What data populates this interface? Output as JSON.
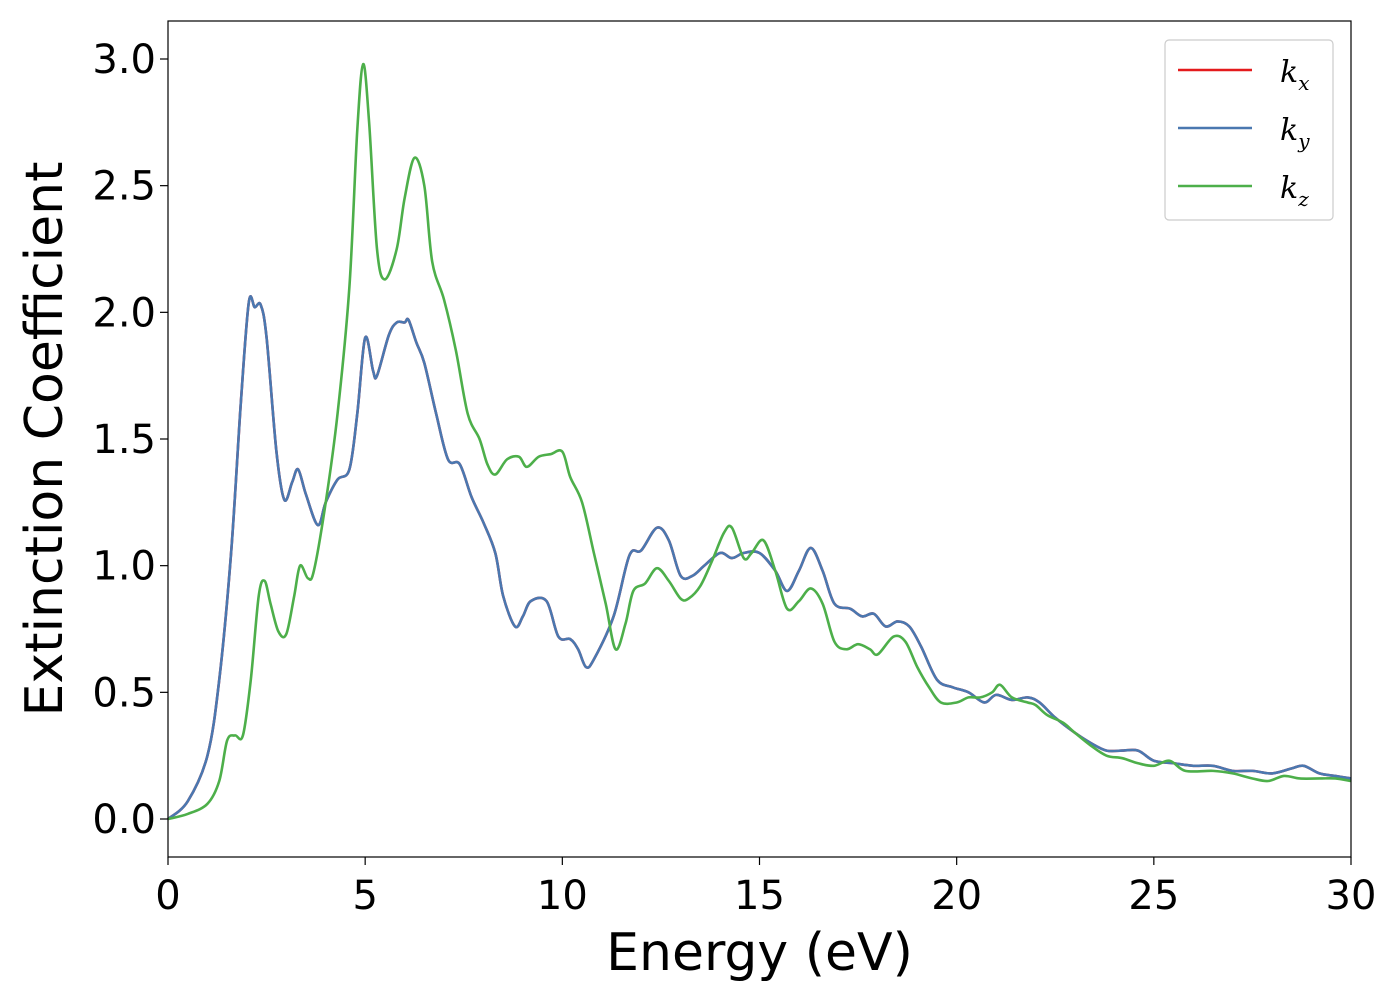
{
  "chart_data": {
    "type": "line",
    "xlabel": "Energy (eV)",
    "ylabel": "Extinction Coefficient",
    "xlim": [
      0,
      30
    ],
    "ylim": [
      -0.15,
      3.15
    ],
    "xticks": [
      0,
      5,
      10,
      15,
      20,
      25,
      30
    ],
    "xtick_labels": [
      "0",
      "5",
      "10",
      "15",
      "20",
      "25",
      "30"
    ],
    "yticks": [
      0.0,
      0.5,
      1.0,
      1.5,
      2.0,
      2.5,
      3.0
    ],
    "ytick_labels": [
      "0.0",
      "0.5",
      "1.0",
      "1.5",
      "2.0",
      "2.5",
      "3.0"
    ],
    "grid": false,
    "legend_position": "top-right",
    "series": [
      {
        "name": "k",
        "subscript": "x",
        "color": "#e41a1c",
        "points": [
          [
            0,
            0
          ],
          [
            0.5,
            0.07
          ],
          [
            1,
            0.25
          ],
          [
            1.3,
            0.55
          ],
          [
            1.6,
            1.05
          ],
          [
            1.85,
            1.65
          ],
          [
            2.05,
            2.04
          ],
          [
            2.2,
            2.02
          ],
          [
            2.35,
            2.03
          ],
          [
            2.5,
            1.9
          ],
          [
            2.75,
            1.45
          ],
          [
            2.95,
            1.26
          ],
          [
            3.15,
            1.33
          ],
          [
            3.3,
            1.38
          ],
          [
            3.5,
            1.28
          ],
          [
            3.8,
            1.16
          ],
          [
            4.0,
            1.25
          ],
          [
            4.3,
            1.34
          ],
          [
            4.6,
            1.38
          ],
          [
            4.8,
            1.6
          ],
          [
            5.0,
            1.9
          ],
          [
            5.2,
            1.77
          ],
          [
            5.3,
            1.75
          ],
          [
            5.6,
            1.91
          ],
          [
            5.8,
            1.96
          ],
          [
            6.0,
            1.96
          ],
          [
            6.1,
            1.97
          ],
          [
            6.3,
            1.88
          ],
          [
            6.5,
            1.8
          ],
          [
            6.8,
            1.6
          ],
          [
            7.1,
            1.42
          ],
          [
            7.4,
            1.4
          ],
          [
            7.7,
            1.27
          ],
          [
            8.0,
            1.17
          ],
          [
            8.3,
            1.05
          ],
          [
            8.5,
            0.88
          ],
          [
            8.8,
            0.76
          ],
          [
            9.0,
            0.8
          ],
          [
            9.2,
            0.86
          ],
          [
            9.6,
            0.86
          ],
          [
            9.9,
            0.72
          ],
          [
            10.2,
            0.71
          ],
          [
            10.4,
            0.67
          ],
          [
            10.6,
            0.6
          ],
          [
            10.8,
            0.63
          ],
          [
            11.3,
            0.8
          ],
          [
            11.7,
            1.04
          ],
          [
            12.0,
            1.06
          ],
          [
            12.4,
            1.15
          ],
          [
            12.7,
            1.1
          ],
          [
            13.0,
            0.96
          ],
          [
            13.3,
            0.96
          ],
          [
            13.6,
            1.0
          ],
          [
            14.0,
            1.05
          ],
          [
            14.3,
            1.03
          ],
          [
            14.6,
            1.05
          ],
          [
            15.0,
            1.05
          ],
          [
            15.4,
            0.98
          ],
          [
            15.7,
            0.9
          ],
          [
            16.0,
            0.98
          ],
          [
            16.3,
            1.07
          ],
          [
            16.6,
            0.98
          ],
          [
            16.9,
            0.85
          ],
          [
            17.3,
            0.83
          ],
          [
            17.6,
            0.8
          ],
          [
            17.9,
            0.81
          ],
          [
            18.2,
            0.76
          ],
          [
            18.5,
            0.78
          ],
          [
            18.8,
            0.76
          ],
          [
            19.1,
            0.68
          ],
          [
            19.5,
            0.55
          ],
          [
            19.9,
            0.52
          ],
          [
            20.3,
            0.5
          ],
          [
            20.7,
            0.46
          ],
          [
            21.0,
            0.49
          ],
          [
            21.4,
            0.47
          ],
          [
            21.8,
            0.48
          ],
          [
            22.1,
            0.46
          ],
          [
            22.5,
            0.4
          ],
          [
            23.0,
            0.34
          ],
          [
            23.4,
            0.3
          ],
          [
            23.8,
            0.27
          ],
          [
            24.2,
            0.27
          ],
          [
            24.6,
            0.27
          ],
          [
            25.0,
            0.23
          ],
          [
            25.5,
            0.22
          ],
          [
            26.0,
            0.21
          ],
          [
            26.5,
            0.21
          ],
          [
            27.0,
            0.19
          ],
          [
            27.5,
            0.19
          ],
          [
            28.0,
            0.18
          ],
          [
            28.5,
            0.2
          ],
          [
            28.8,
            0.21
          ],
          [
            29.2,
            0.18
          ],
          [
            29.6,
            0.17
          ],
          [
            30,
            0.16
          ]
        ]
      },
      {
        "name": "k",
        "subscript": "y",
        "color": "#4a78b0",
        "points": [
          [
            0,
            0
          ],
          [
            0.5,
            0.07
          ],
          [
            1,
            0.25
          ],
          [
            1.3,
            0.55
          ],
          [
            1.6,
            1.05
          ],
          [
            1.85,
            1.65
          ],
          [
            2.05,
            2.04
          ],
          [
            2.2,
            2.02
          ],
          [
            2.35,
            2.03
          ],
          [
            2.5,
            1.9
          ],
          [
            2.75,
            1.45
          ],
          [
            2.95,
            1.26
          ],
          [
            3.15,
            1.33
          ],
          [
            3.3,
            1.38
          ],
          [
            3.5,
            1.28
          ],
          [
            3.8,
            1.16
          ],
          [
            4.0,
            1.25
          ],
          [
            4.3,
            1.34
          ],
          [
            4.6,
            1.38
          ],
          [
            4.8,
            1.6
          ],
          [
            5.0,
            1.9
          ],
          [
            5.2,
            1.77
          ],
          [
            5.3,
            1.75
          ],
          [
            5.6,
            1.91
          ],
          [
            5.8,
            1.96
          ],
          [
            6.0,
            1.96
          ],
          [
            6.1,
            1.97
          ],
          [
            6.3,
            1.88
          ],
          [
            6.5,
            1.8
          ],
          [
            6.8,
            1.6
          ],
          [
            7.1,
            1.42
          ],
          [
            7.4,
            1.4
          ],
          [
            7.7,
            1.27
          ],
          [
            8.0,
            1.17
          ],
          [
            8.3,
            1.05
          ],
          [
            8.5,
            0.88
          ],
          [
            8.8,
            0.76
          ],
          [
            9.0,
            0.8
          ],
          [
            9.2,
            0.86
          ],
          [
            9.6,
            0.86
          ],
          [
            9.9,
            0.72
          ],
          [
            10.2,
            0.71
          ],
          [
            10.4,
            0.67
          ],
          [
            10.6,
            0.6
          ],
          [
            10.8,
            0.63
          ],
          [
            11.3,
            0.8
          ],
          [
            11.7,
            1.04
          ],
          [
            12.0,
            1.06
          ],
          [
            12.4,
            1.15
          ],
          [
            12.7,
            1.1
          ],
          [
            13.0,
            0.96
          ],
          [
            13.3,
            0.96
          ],
          [
            13.6,
            1.0
          ],
          [
            14.0,
            1.05
          ],
          [
            14.3,
            1.03
          ],
          [
            14.6,
            1.05
          ],
          [
            15.0,
            1.05
          ],
          [
            15.4,
            0.98
          ],
          [
            15.7,
            0.9
          ],
          [
            16.0,
            0.98
          ],
          [
            16.3,
            1.07
          ],
          [
            16.6,
            0.98
          ],
          [
            16.9,
            0.85
          ],
          [
            17.3,
            0.83
          ],
          [
            17.6,
            0.8
          ],
          [
            17.9,
            0.81
          ],
          [
            18.2,
            0.76
          ],
          [
            18.5,
            0.78
          ],
          [
            18.8,
            0.76
          ],
          [
            19.1,
            0.68
          ],
          [
            19.5,
            0.55
          ],
          [
            19.9,
            0.52
          ],
          [
            20.3,
            0.5
          ],
          [
            20.7,
            0.46
          ],
          [
            21.0,
            0.49
          ],
          [
            21.4,
            0.47
          ],
          [
            21.8,
            0.48
          ],
          [
            22.1,
            0.46
          ],
          [
            22.5,
            0.4
          ],
          [
            23.0,
            0.34
          ],
          [
            23.4,
            0.3
          ],
          [
            23.8,
            0.27
          ],
          [
            24.2,
            0.27
          ],
          [
            24.6,
            0.27
          ],
          [
            25.0,
            0.23
          ],
          [
            25.5,
            0.22
          ],
          [
            26.0,
            0.21
          ],
          [
            26.5,
            0.21
          ],
          [
            27.0,
            0.19
          ],
          [
            27.5,
            0.19
          ],
          [
            28.0,
            0.18
          ],
          [
            28.5,
            0.2
          ],
          [
            28.8,
            0.21
          ],
          [
            29.2,
            0.18
          ],
          [
            29.6,
            0.17
          ],
          [
            30,
            0.16
          ]
        ]
      },
      {
        "name": "k",
        "subscript": "z",
        "color": "#4daf4a",
        "points": [
          [
            0,
            0
          ],
          [
            0.5,
            0.02
          ],
          [
            1.0,
            0.06
          ],
          [
            1.3,
            0.15
          ],
          [
            1.5,
            0.31
          ],
          [
            1.7,
            0.33
          ],
          [
            1.9,
            0.33
          ],
          [
            2.1,
            0.55
          ],
          [
            2.3,
            0.88
          ],
          [
            2.45,
            0.94
          ],
          [
            2.6,
            0.85
          ],
          [
            2.8,
            0.74
          ],
          [
            3.0,
            0.73
          ],
          [
            3.2,
            0.88
          ],
          [
            3.35,
            1.0
          ],
          [
            3.55,
            0.95
          ],
          [
            3.7,
            0.98
          ],
          [
            4.0,
            1.25
          ],
          [
            4.3,
            1.6
          ],
          [
            4.6,
            2.1
          ],
          [
            4.8,
            2.72
          ],
          [
            4.95,
            2.98
          ],
          [
            5.1,
            2.75
          ],
          [
            5.3,
            2.25
          ],
          [
            5.5,
            2.13
          ],
          [
            5.8,
            2.25
          ],
          [
            6.0,
            2.45
          ],
          [
            6.25,
            2.61
          ],
          [
            6.5,
            2.5
          ],
          [
            6.7,
            2.2
          ],
          [
            7.0,
            2.05
          ],
          [
            7.3,
            1.85
          ],
          [
            7.6,
            1.6
          ],
          [
            7.9,
            1.5
          ],
          [
            8.1,
            1.4
          ],
          [
            8.3,
            1.36
          ],
          [
            8.6,
            1.42
          ],
          [
            8.9,
            1.43
          ],
          [
            9.1,
            1.39
          ],
          [
            9.4,
            1.43
          ],
          [
            9.7,
            1.44
          ],
          [
            10.0,
            1.45
          ],
          [
            10.2,
            1.35
          ],
          [
            10.5,
            1.25
          ],
          [
            10.8,
            1.05
          ],
          [
            11.1,
            0.85
          ],
          [
            11.35,
            0.67
          ],
          [
            11.6,
            0.77
          ],
          [
            11.8,
            0.9
          ],
          [
            12.1,
            0.93
          ],
          [
            12.4,
            0.99
          ],
          [
            12.7,
            0.94
          ],
          [
            13.0,
            0.87
          ],
          [
            13.2,
            0.87
          ],
          [
            13.5,
            0.92
          ],
          [
            13.8,
            1.02
          ],
          [
            14.1,
            1.13
          ],
          [
            14.3,
            1.15
          ],
          [
            14.6,
            1.03
          ],
          [
            14.8,
            1.05
          ],
          [
            15.1,
            1.1
          ],
          [
            15.4,
            0.98
          ],
          [
            15.7,
            0.83
          ],
          [
            16.0,
            0.86
          ],
          [
            16.3,
            0.91
          ],
          [
            16.6,
            0.85
          ],
          [
            16.9,
            0.7
          ],
          [
            17.2,
            0.67
          ],
          [
            17.5,
            0.69
          ],
          [
            17.8,
            0.67
          ],
          [
            18.0,
            0.65
          ],
          [
            18.4,
            0.72
          ],
          [
            18.7,
            0.7
          ],
          [
            19.0,
            0.6
          ],
          [
            19.3,
            0.52
          ],
          [
            19.6,
            0.46
          ],
          [
            20.0,
            0.46
          ],
          [
            20.3,
            0.48
          ],
          [
            20.6,
            0.48
          ],
          [
            20.9,
            0.5
          ],
          [
            21.1,
            0.53
          ],
          [
            21.4,
            0.48
          ],
          [
            21.8,
            0.46
          ],
          [
            22.0,
            0.45
          ],
          [
            22.3,
            0.41
          ],
          [
            22.7,
            0.38
          ],
          [
            23.0,
            0.34
          ],
          [
            23.4,
            0.29
          ],
          [
            23.8,
            0.25
          ],
          [
            24.2,
            0.24
          ],
          [
            24.6,
            0.22
          ],
          [
            25.0,
            0.21
          ],
          [
            25.4,
            0.23
          ],
          [
            25.8,
            0.19
          ],
          [
            26.5,
            0.19
          ],
          [
            27.0,
            0.18
          ],
          [
            27.5,
            0.16
          ],
          [
            27.9,
            0.15
          ],
          [
            28.3,
            0.17
          ],
          [
            28.7,
            0.16
          ],
          [
            29.2,
            0.16
          ],
          [
            29.6,
            0.16
          ],
          [
            30,
            0.15
          ]
        ]
      }
    ]
  }
}
